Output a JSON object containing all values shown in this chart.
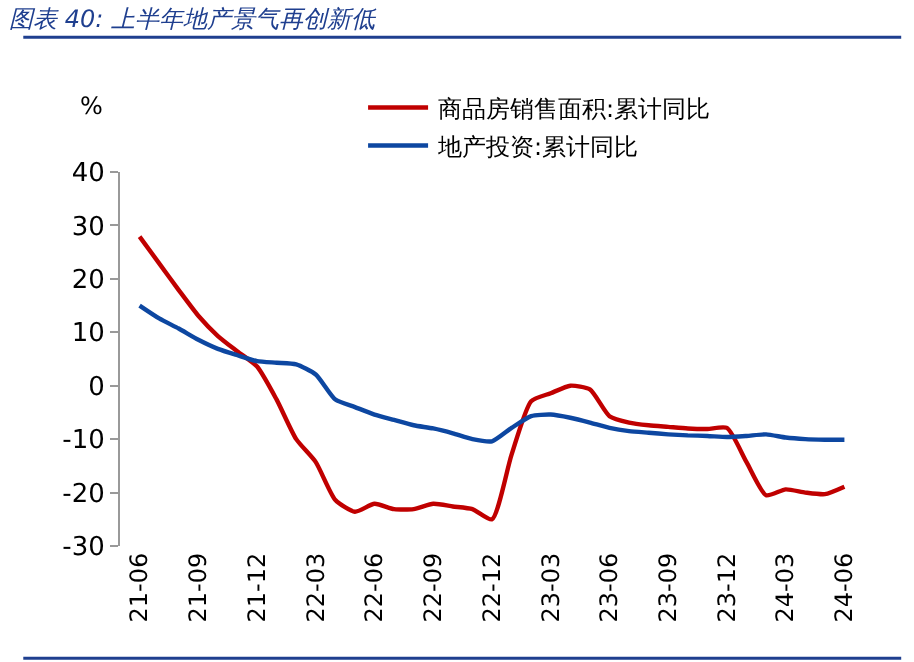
{
  "chart_data": {
    "type": "line",
    "title": "图表 40: 上半年地产景气再创新低",
    "ylabel": "%",
    "categories": [
      "21-06",
      null,
      null,
      "21-09",
      null,
      null,
      "21-12",
      null,
      null,
      "22-03",
      null,
      null,
      "22-06",
      null,
      null,
      "22-09",
      null,
      null,
      "22-12",
      null,
      null,
      "23-03",
      null,
      null,
      "23-06",
      null,
      null,
      "23-09",
      null,
      null,
      "23-12",
      null,
      null,
      "24-03",
      null,
      null,
      "24-06"
    ],
    "series": [
      {
        "name": "商品房销售面积:累计同比",
        "color": "#c00000",
        "values": [
          27.9,
          22.9,
          17.9,
          13.1,
          9.3,
          6.4,
          3.6,
          -2.6,
          -10,
          -14.3,
          -21.4,
          -23.6,
          -22.1,
          -23.1,
          -23.1,
          -22.1,
          -22.6,
          -23.1,
          -25,
          -12.9,
          -2.9,
          -1.4,
          0,
          -0.7,
          -5.7,
          -6.9,
          -7.4,
          -7.7,
          -8,
          -8.1,
          -7.9,
          -14.3,
          -20.5,
          -19.4,
          -20,
          -20.3,
          -18.9
        ]
      },
      {
        "name": "地产投资:累计同比",
        "color": "#0d47a1",
        "values": [
          15,
          12.6,
          10.7,
          8.6,
          6.9,
          5.7,
          4.6,
          4.3,
          4,
          2.1,
          -2.6,
          -4,
          -5.4,
          -6.4,
          -7.4,
          -8,
          -8.9,
          -10,
          -10.4,
          -7.9,
          -5.7,
          -5.4,
          -6,
          -6.9,
          -7.9,
          -8.5,
          -8.8,
          -9.1,
          -9.3,
          -9.4,
          -9.6,
          -9.4,
          -9.1,
          -9.7,
          -10,
          -10.1,
          -10.1
        ]
      }
    ],
    "ylim": [
      -30,
      40
    ],
    "yticks": [
      -30,
      -20,
      -10,
      0,
      10,
      20,
      30,
      40
    ],
    "grid": false,
    "legend": "top",
    "marker": "none",
    "line_style": "solid"
  }
}
